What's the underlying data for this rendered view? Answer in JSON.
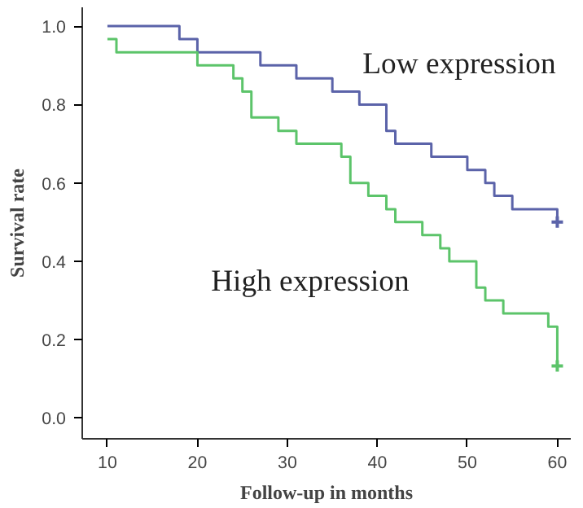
{
  "chart_data": {
    "type": "step",
    "xlabel": "Follow-up in months",
    "ylabel": "Survival rate",
    "xlim": [
      7.2,
      61.5
    ],
    "ylim": [
      -0.053,
      1.048
    ],
    "xticks": [
      10,
      20,
      30,
      40,
      50,
      60
    ],
    "yticks": [
      {
        "value": 0,
        "label": "0.0"
      },
      {
        "value": 0.2,
        "label": "0.2"
      },
      {
        "value": 0.4,
        "label": "0.4"
      },
      {
        "value": 0.6,
        "label": "0.6"
      },
      {
        "value": 0.8,
        "label": "0.8"
      },
      {
        "value": 1,
        "label": "1.0"
      }
    ],
    "grid": false,
    "series": [
      {
        "name": "Low expression",
        "color": "#5b63a9",
        "x": [
          10,
          18,
          20,
          27,
          31,
          35,
          38,
          41,
          42,
          46,
          50,
          52,
          53,
          55,
          60
        ],
        "values": [
          1.0,
          0.967,
          0.933,
          0.9,
          0.867,
          0.833,
          0.8,
          0.733,
          0.7,
          0.667,
          0.633,
          0.6,
          0.567,
          0.533,
          0.5
        ]
      },
      {
        "name": "High expression",
        "color": "#5cc46a",
        "x": [
          10,
          11,
          20,
          24,
          25,
          26,
          29,
          31,
          36,
          37,
          39,
          41,
          42,
          45,
          47,
          48,
          51,
          52,
          54,
          59,
          60
        ],
        "values": [
          0.967,
          0.933,
          0.9,
          0.867,
          0.833,
          0.767,
          0.733,
          0.7,
          0.667,
          0.6,
          0.567,
          0.533,
          0.5,
          0.467,
          0.433,
          0.4,
          0.333,
          0.3,
          0.267,
          0.233,
          0.133
        ]
      },
      {
        "type": "scatter",
        "marker": "cross",
        "color": "#5b63a9",
        "x": [
          60
        ],
        "values": [
          0.5
        ]
      },
      {
        "type": "scatter",
        "marker": "cross",
        "color": "#5cc46a",
        "x": [
          60
        ],
        "values": [
          0.133
        ]
      }
    ]
  }
}
